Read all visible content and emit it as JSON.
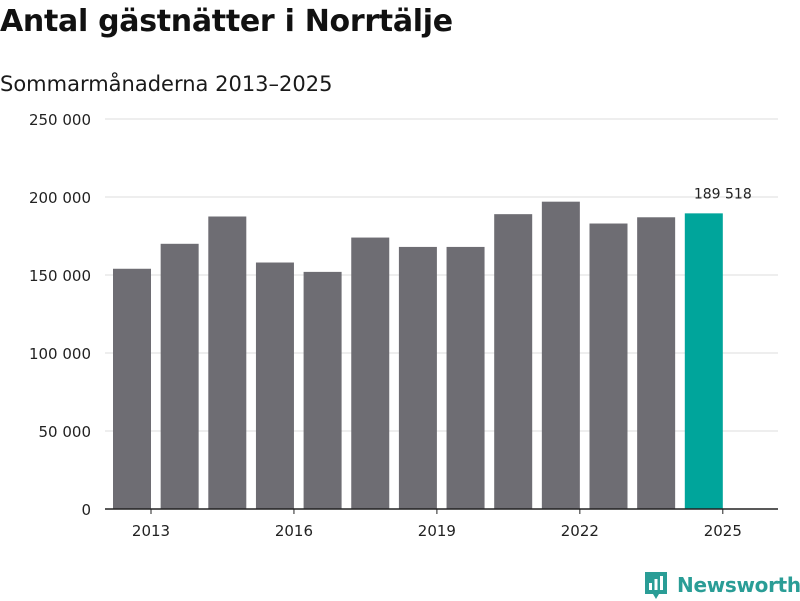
{
  "header": {
    "title": "Antal gästnätter i Norrtälje",
    "subtitle": "Sommarmånaderna 2013–2025"
  },
  "brand": {
    "name": "Newsworthy"
  },
  "colors": {
    "bar": "#6e6d73",
    "highlight": "#00a59b",
    "grid": "#dddddd",
    "axis": "#222222",
    "brand": "#2a9d96"
  },
  "chart_data": {
    "type": "bar",
    "title": "Antal gästnätter i Norrtälje",
    "subtitle": "Sommarmånaderna 2013–2025",
    "xlabel": "",
    "ylabel": "",
    "categories": [
      "2013",
      "2014",
      "2015",
      "2016",
      "2017",
      "2018",
      "2019",
      "2020",
      "2021",
      "2022",
      "2023",
      "2024",
      "2025"
    ],
    "values": [
      154000,
      170000,
      187500,
      158000,
      152000,
      174000,
      168000,
      168000,
      189000,
      197000,
      183000,
      187000,
      189518
    ],
    "highlight_index": 12,
    "annotation": {
      "category": "2025",
      "text": "189 518"
    },
    "ylim": [
      0,
      250000
    ],
    "yticks": [
      0,
      50000,
      100000,
      150000,
      200000,
      250000
    ],
    "ytick_labels": [
      "0",
      "50 000",
      "100 000",
      "150 000",
      "200 000",
      "250 000"
    ],
    "xtick_labels": [
      "2013",
      "2016",
      "2019",
      "2022",
      "2025"
    ],
    "grid": true,
    "legend": "none"
  }
}
